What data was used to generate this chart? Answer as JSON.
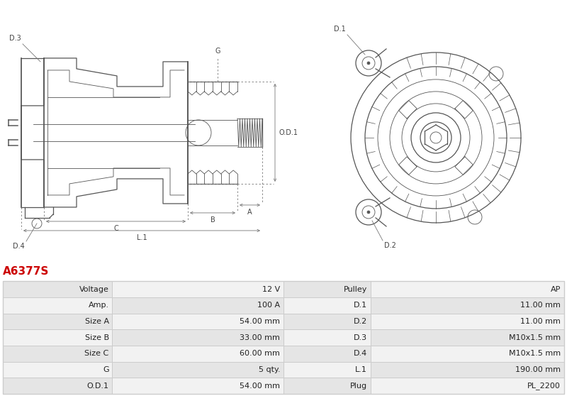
{
  "title": "A6377S",
  "title_color": "#cc0000",
  "bg_color": "#ffffff",
  "table_row_bg1": "#f2f2f2",
  "table_row_bg2": "#e5e5e5",
  "table_border_color": "#cccccc",
  "rows": [
    [
      "Voltage",
      "12 V",
      "Pulley",
      "AP"
    ],
    [
      "Amp.",
      "100 A",
      "D.1",
      "11.00 mm"
    ],
    [
      "Size A",
      "54.00 mm",
      "D.2",
      "11.00 mm"
    ],
    [
      "Size B",
      "33.00 mm",
      "D.3",
      "M10x1.5 mm"
    ],
    [
      "Size C",
      "60.00 mm",
      "D.4",
      "M10x1.5 mm"
    ],
    [
      "G",
      "5 qty.",
      "L.1",
      "190.00 mm"
    ],
    [
      "O.D.1",
      "54.00 mm",
      "Plug",
      "PL_2200"
    ]
  ],
  "font_size_table": 8.0,
  "font_size_title": 11,
  "lc": "#555555",
  "dc": "#777777"
}
